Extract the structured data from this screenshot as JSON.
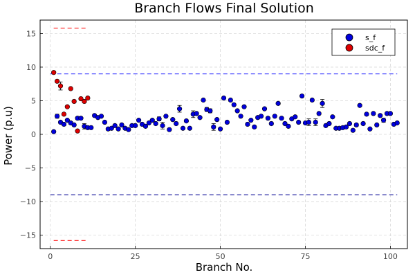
{
  "chart_data": {
    "type": "scatter",
    "title": "Branch Flows Final Solution",
    "xlabel": "Branch No.",
    "ylabel": "Power (p.u)",
    "xlim": [
      -3,
      105
    ],
    "ylim": [
      -17,
      17
    ],
    "xticks": [
      0,
      25,
      50,
      75,
      100
    ],
    "yticks": [
      -15,
      -10,
      -5,
      0,
      5,
      10,
      15
    ],
    "grid": true,
    "legend_position": "top-right",
    "reference_lines": [
      {
        "name": "s_f upper limit",
        "y": 9.0,
        "x_range": [
          0,
          102
        ],
        "color": "#5050ff"
      },
      {
        "name": "s_f lower limit",
        "y": -9.0,
        "x_range": [
          0,
          102
        ],
        "color": "#2020a0"
      },
      {
        "name": "sdc_f upper limit",
        "y": 15.8,
        "x_range": [
          1,
          11
        ],
        "color": "#ff3030"
      },
      {
        "name": "sdc_f lower limit",
        "y": -15.8,
        "x_range": [
          1,
          11
        ],
        "color": "#ff3030"
      }
    ],
    "series": [
      {
        "name": "s_f",
        "color": "#0000dd",
        "x": [
          1,
          2,
          3,
          4,
          5,
          6,
          7,
          8,
          9,
          10,
          11,
          12,
          13,
          14,
          15,
          16,
          17,
          18,
          19,
          20,
          21,
          22,
          23,
          24,
          25,
          26,
          27,
          28,
          29,
          30,
          31,
          32,
          33,
          34,
          35,
          36,
          37,
          38,
          39,
          40,
          41,
          42,
          43,
          44,
          45,
          46,
          47,
          48,
          49,
          50,
          51,
          52,
          53,
          54,
          55,
          56,
          57,
          58,
          59,
          60,
          61,
          62,
          63,
          64,
          65,
          66,
          67,
          68,
          69,
          70,
          71,
          72,
          73,
          74,
          75,
          76,
          77,
          78,
          79,
          80,
          81,
          82,
          83,
          84,
          85,
          86,
          87,
          88,
          89,
          90,
          91,
          92,
          93,
          94,
          95,
          96,
          97,
          98,
          99,
          100,
          101,
          102
        ],
        "y": [
          0.4,
          2.7,
          1.8,
          1.5,
          2.1,
          1.7,
          1.4,
          2.4,
          2.4,
          1.2,
          1.0,
          1.0,
          2.8,
          2.5,
          2.7,
          1.8,
          0.8,
          0.9,
          1.3,
          0.8,
          1.4,
          0.9,
          0.7,
          1.3,
          1.3,
          2.1,
          1.5,
          1.2,
          1.7,
          2.1,
          1.6,
          2.3,
          1.3,
          2.7,
          0.7,
          2.2,
          1.6,
          3.8,
          0.9,
          2.0,
          0.9,
          3.0,
          3.1,
          2.5,
          5.1,
          3.7,
          3.5,
          1.1,
          2.2,
          0.8,
          5.4,
          1.8,
          5.1,
          4.4,
          3.5,
          2.7,
          4.1,
          1.5,
          2.1,
          1.1,
          2.5,
          2.7,
          3.8,
          2.4,
          1.6,
          2.7,
          4.6,
          2.4,
          1.6,
          1.2,
          2.3,
          2.6,
          1.8,
          5.7,
          1.7,
          1.8,
          5.1,
          1.8,
          3.1,
          4.6,
          1.3,
          1.6,
          2.6,
          0.9,
          0.9,
          1.0,
          1.1,
          1.6,
          0.6,
          1.4,
          4.3,
          1.6,
          3.0,
          0.8,
          3.1,
          1.4,
          2.8,
          2.1,
          3.1,
          3.1,
          1.5,
          1.7
        ],
        "err": [
          0,
          0.3,
          0,
          0.2,
          0,
          0.2,
          0,
          0.2,
          0,
          0.4,
          0.2,
          0,
          0,
          0,
          0,
          0,
          0.2,
          0,
          0,
          0,
          0,
          0,
          0,
          0,
          0,
          0,
          0,
          0,
          0,
          0,
          0,
          0.3,
          0.5,
          0,
          0,
          0,
          0,
          0.5,
          0,
          0,
          0,
          0.5,
          0,
          0,
          0,
          0.3,
          0.3,
          0.5,
          0,
          0,
          0,
          0,
          0,
          0,
          0,
          0,
          0,
          0,
          0,
          0,
          0.2,
          0,
          0,
          0,
          0,
          0,
          0,
          0,
          0,
          0,
          0,
          0,
          0,
          0,
          0,
          0.5,
          0,
          0.5,
          0,
          0.6,
          0,
          0.2,
          0,
          0,
          0,
          0,
          0,
          0,
          0,
          0.2,
          0.2,
          0,
          0,
          0,
          0,
          0,
          0,
          0.3,
          0,
          0,
          0,
          0
        ]
      },
      {
        "name": "sdc_f",
        "color": "#dd0000",
        "x": [
          1,
          2,
          3,
          4,
          5,
          6,
          7,
          8,
          9,
          10,
          11
        ],
        "y": [
          9.2,
          7.9,
          7.2,
          3.0,
          4.1,
          6.8,
          4.9,
          0.5,
          5.3,
          4.9,
          5.4
        ],
        "err": [
          0,
          0,
          0.6,
          0,
          0,
          0,
          0,
          0,
          0,
          0,
          0
        ]
      }
    ]
  }
}
